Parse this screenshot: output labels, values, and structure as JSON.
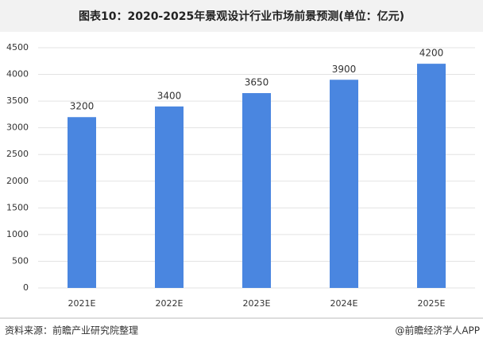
{
  "chart_data": {
    "type": "bar",
    "title": "图表10：2020-2025年景观设计行业市场前景预测(单位：亿元)",
    "categories": [
      "2021E",
      "2022E",
      "2023E",
      "2024E",
      "2025E"
    ],
    "values": [
      3200,
      3400,
      3650,
      3900,
      4200
    ],
    "color": "#4a86e0",
    "ylim": [
      0,
      4500
    ],
    "yticks": [
      0,
      500,
      1000,
      1500,
      2000,
      2500,
      3000,
      3500,
      4000,
      4500
    ],
    "grid": true,
    "source": "资料来源：前瞻产业研究院整理",
    "credit": "@前瞻经济学人APP"
  }
}
